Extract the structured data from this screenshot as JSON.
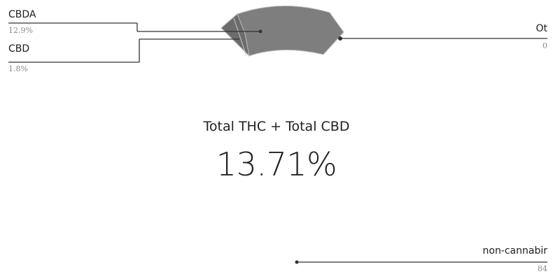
{
  "chart_data": {
    "type": "pie",
    "title": "",
    "slices": [
      {
        "label": "CBDA",
        "value_text": "12.9%",
        "value": 12.9
      },
      {
        "label": "CBD",
        "value_text": "1.8%",
        "value": 1.8
      },
      {
        "label": "Ot",
        "value_text": "0",
        "value": 0
      },
      {
        "label": "non-cannabir",
        "value_text": "84",
        "value": 84
      }
    ],
    "center_label": "Total THC + Total CBD",
    "center_value": "13.71%",
    "colors": {
      "slice_dark": "#6f6f6f",
      "slice_mid": "#8a8a8a",
      "leader_line": "#333333"
    }
  }
}
